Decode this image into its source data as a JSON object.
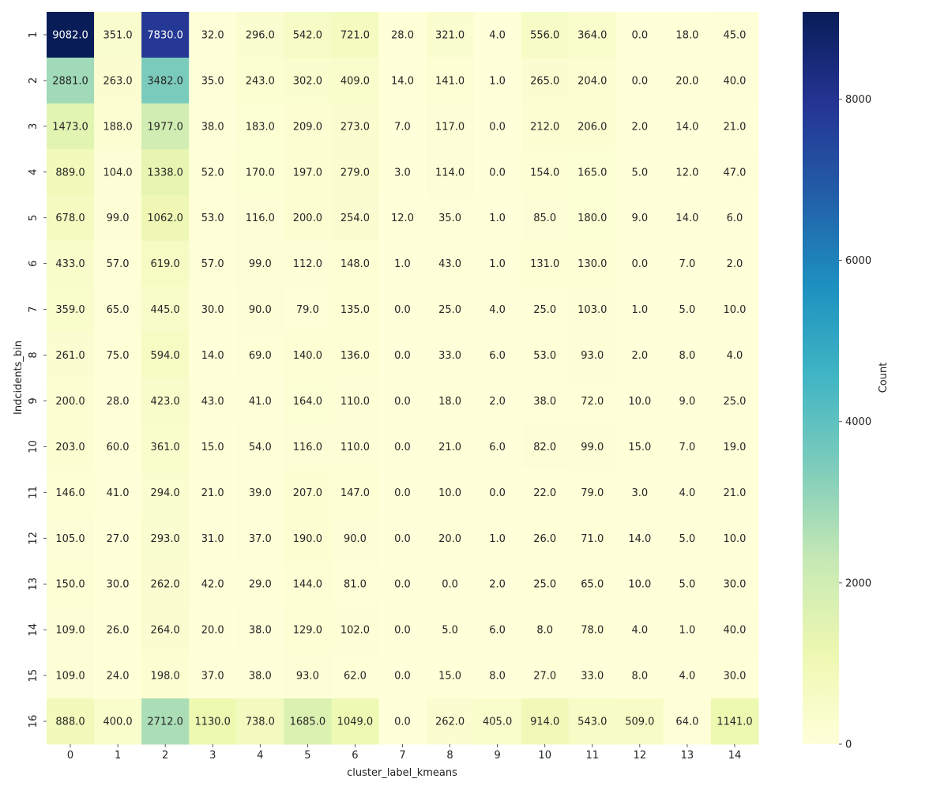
{
  "chart_data": {
    "type": "heatmap",
    "xlabel": "cluster_label_kmeans",
    "ylabel": "Indcidents_bin",
    "x_categories": [
      "0",
      "1",
      "2",
      "3",
      "4",
      "5",
      "6",
      "7",
      "8",
      "9",
      "10",
      "11",
      "12",
      "13",
      "14"
    ],
    "y_categories": [
      "1",
      "2",
      "3",
      "4",
      "5",
      "6",
      "7",
      "8",
      "9",
      "10",
      "11",
      "12",
      "13",
      "14",
      "15",
      "16"
    ],
    "values": [
      [
        9082.0,
        351.0,
        7830.0,
        32.0,
        296.0,
        542.0,
        721.0,
        28.0,
        321.0,
        4.0,
        556.0,
        364.0,
        0.0,
        18.0,
        45.0
      ],
      [
        2881.0,
        263.0,
        3482.0,
        35.0,
        243.0,
        302.0,
        409.0,
        14.0,
        141.0,
        1.0,
        265.0,
        204.0,
        0.0,
        20.0,
        40.0
      ],
      [
        1473.0,
        188.0,
        1977.0,
        38.0,
        183.0,
        209.0,
        273.0,
        7.0,
        117.0,
        0.0,
        212.0,
        206.0,
        2.0,
        14.0,
        21.0
      ],
      [
        889.0,
        104.0,
        1338.0,
        52.0,
        170.0,
        197.0,
        279.0,
        3.0,
        114.0,
        0.0,
        154.0,
        165.0,
        5.0,
        12.0,
        47.0
      ],
      [
        678.0,
        99.0,
        1062.0,
        53.0,
        116.0,
        200.0,
        254.0,
        12.0,
        35.0,
        1.0,
        85.0,
        180.0,
        9.0,
        14.0,
        6.0
      ],
      [
        433.0,
        57.0,
        619.0,
        57.0,
        99.0,
        112.0,
        148.0,
        1.0,
        43.0,
        1.0,
        131.0,
        130.0,
        0.0,
        7.0,
        2.0
      ],
      [
        359.0,
        65.0,
        445.0,
        30.0,
        90.0,
        79.0,
        135.0,
        0.0,
        25.0,
        4.0,
        25.0,
        103.0,
        1.0,
        5.0,
        10.0
      ],
      [
        261.0,
        75.0,
        594.0,
        14.0,
        69.0,
        140.0,
        136.0,
        0.0,
        33.0,
        6.0,
        53.0,
        93.0,
        2.0,
        8.0,
        4.0
      ],
      [
        200.0,
        28.0,
        423.0,
        43.0,
        41.0,
        164.0,
        110.0,
        0.0,
        18.0,
        2.0,
        38.0,
        72.0,
        10.0,
        9.0,
        25.0
      ],
      [
        203.0,
        60.0,
        361.0,
        15.0,
        54.0,
        116.0,
        110.0,
        0.0,
        21.0,
        6.0,
        82.0,
        99.0,
        15.0,
        7.0,
        19.0
      ],
      [
        146.0,
        41.0,
        294.0,
        21.0,
        39.0,
        207.0,
        147.0,
        0.0,
        10.0,
        0.0,
        22.0,
        79.0,
        3.0,
        4.0,
        21.0
      ],
      [
        105.0,
        27.0,
        293.0,
        31.0,
        37.0,
        190.0,
        90.0,
        0.0,
        20.0,
        1.0,
        26.0,
        71.0,
        14.0,
        5.0,
        10.0
      ],
      [
        150.0,
        30.0,
        262.0,
        42.0,
        29.0,
        144.0,
        81.0,
        0.0,
        0.0,
        2.0,
        25.0,
        65.0,
        10.0,
        5.0,
        30.0
      ],
      [
        109.0,
        26.0,
        264.0,
        20.0,
        38.0,
        129.0,
        102.0,
        0.0,
        5.0,
        6.0,
        8.0,
        78.0,
        4.0,
        1.0,
        40.0
      ],
      [
        109.0,
        24.0,
        198.0,
        37.0,
        38.0,
        93.0,
        62.0,
        0.0,
        15.0,
        8.0,
        27.0,
        33.0,
        8.0,
        4.0,
        30.0
      ],
      [
        888.0,
        400.0,
        2712.0,
        1130.0,
        738.0,
        1685.0,
        1049.0,
        0.0,
        262.0,
        405.0,
        914.0,
        543.0,
        509.0,
        64.0,
        1141.0
      ]
    ],
    "colorbar": {
      "label": "Count",
      "min": 0,
      "max": 9082,
      "ticks": [
        0,
        2000,
        4000,
        6000,
        8000
      ]
    },
    "colormap": "YlGnBu",
    "grid": false
  }
}
